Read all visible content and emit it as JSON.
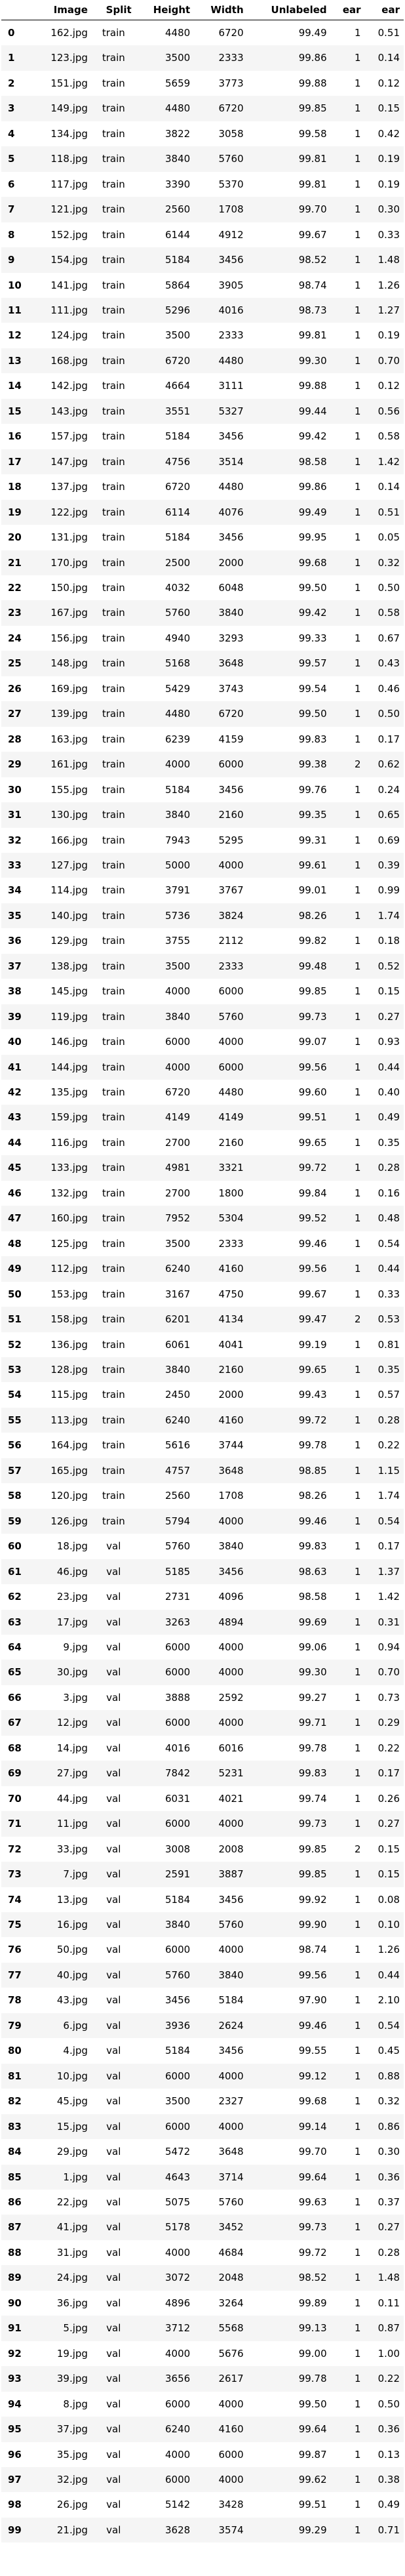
{
  "columns": [
    "",
    "Image",
    "Split",
    "Height",
    "Width",
    "Unlabeled",
    "ear",
    "ear"
  ],
  "rows": [
    [
      "0",
      "162.jpg",
      "train",
      "4480",
      "6720",
      "99.49",
      "1",
      "0.51"
    ],
    [
      "1",
      "123.jpg",
      "train",
      "3500",
      "2333",
      "99.86",
      "1",
      "0.14"
    ],
    [
      "2",
      "151.jpg",
      "train",
      "5659",
      "3773",
      "99.88",
      "1",
      "0.12"
    ],
    [
      "3",
      "149.jpg",
      "train",
      "4480",
      "6720",
      "99.85",
      "1",
      "0.15"
    ],
    [
      "4",
      "134.jpg",
      "train",
      "3822",
      "3058",
      "99.58",
      "1",
      "0.42"
    ],
    [
      "5",
      "118.jpg",
      "train",
      "3840",
      "5760",
      "99.81",
      "1",
      "0.19"
    ],
    [
      "6",
      "117.jpg",
      "train",
      "3390",
      "5370",
      "99.81",
      "1",
      "0.19"
    ],
    [
      "7",
      "121.jpg",
      "train",
      "2560",
      "1708",
      "99.70",
      "1",
      "0.30"
    ],
    [
      "8",
      "152.jpg",
      "train",
      "6144",
      "4912",
      "99.67",
      "1",
      "0.33"
    ],
    [
      "9",
      "154.jpg",
      "train",
      "5184",
      "3456",
      "98.52",
      "1",
      "1.48"
    ],
    [
      "10",
      "141.jpg",
      "train",
      "5864",
      "3905",
      "98.74",
      "1",
      "1.26"
    ],
    [
      "11",
      "111.jpg",
      "train",
      "5296",
      "4016",
      "98.73",
      "1",
      "1.27"
    ],
    [
      "12",
      "124.jpg",
      "train",
      "3500",
      "2333",
      "99.81",
      "1",
      "0.19"
    ],
    [
      "13",
      "168.jpg",
      "train",
      "6720",
      "4480",
      "99.30",
      "1",
      "0.70"
    ],
    [
      "14",
      "142.jpg",
      "train",
      "4664",
      "3111",
      "99.88",
      "1",
      "0.12"
    ],
    [
      "15",
      "143.jpg",
      "train",
      "3551",
      "5327",
      "99.44",
      "1",
      "0.56"
    ],
    [
      "16",
      "157.jpg",
      "train",
      "5184",
      "3456",
      "99.42",
      "1",
      "0.58"
    ],
    [
      "17",
      "147.jpg",
      "train",
      "4756",
      "3514",
      "98.58",
      "1",
      "1.42"
    ],
    [
      "18",
      "137.jpg",
      "train",
      "6720",
      "4480",
      "99.86",
      "1",
      "0.14"
    ],
    [
      "19",
      "122.jpg",
      "train",
      "6114",
      "4076",
      "99.49",
      "1",
      "0.51"
    ],
    [
      "20",
      "131.jpg",
      "train",
      "5184",
      "3456",
      "99.95",
      "1",
      "0.05"
    ],
    [
      "21",
      "170.jpg",
      "train",
      "2500",
      "2000",
      "99.68",
      "1",
      "0.32"
    ],
    [
      "22",
      "150.jpg",
      "train",
      "4032",
      "6048",
      "99.50",
      "1",
      "0.50"
    ],
    [
      "23",
      "167.jpg",
      "train",
      "5760",
      "3840",
      "99.42",
      "1",
      "0.58"
    ],
    [
      "24",
      "156.jpg",
      "train",
      "4940",
      "3293",
      "99.33",
      "1",
      "0.67"
    ],
    [
      "25",
      "148.jpg",
      "train",
      "5168",
      "3648",
      "99.57",
      "1",
      "0.43"
    ],
    [
      "26",
      "169.jpg",
      "train",
      "5429",
      "3743",
      "99.54",
      "1",
      "0.46"
    ],
    [
      "27",
      "139.jpg",
      "train",
      "4480",
      "6720",
      "99.50",
      "1",
      "0.50"
    ],
    [
      "28",
      "163.jpg",
      "train",
      "6239",
      "4159",
      "99.83",
      "1",
      "0.17"
    ],
    [
      "29",
      "161.jpg",
      "train",
      "4000",
      "6000",
      "99.38",
      "2",
      "0.62"
    ],
    [
      "30",
      "155.jpg",
      "train",
      "5184",
      "3456",
      "99.76",
      "1",
      "0.24"
    ],
    [
      "31",
      "130.jpg",
      "train",
      "3840",
      "2160",
      "99.35",
      "1",
      "0.65"
    ],
    [
      "32",
      "166.jpg",
      "train",
      "7943",
      "5295",
      "99.31",
      "1",
      "0.69"
    ],
    [
      "33",
      "127.jpg",
      "train",
      "5000",
      "4000",
      "99.61",
      "1",
      "0.39"
    ],
    [
      "34",
      "114.jpg",
      "train",
      "3791",
      "3767",
      "99.01",
      "1",
      "0.99"
    ],
    [
      "35",
      "140.jpg",
      "train",
      "5736",
      "3824",
      "98.26",
      "1",
      "1.74"
    ],
    [
      "36",
      "129.jpg",
      "train",
      "3755",
      "2112",
      "99.82",
      "1",
      "0.18"
    ],
    [
      "37",
      "138.jpg",
      "train",
      "3500",
      "2333",
      "99.48",
      "1",
      "0.52"
    ],
    [
      "38",
      "145.jpg",
      "train",
      "4000",
      "6000",
      "99.85",
      "1",
      "0.15"
    ],
    [
      "39",
      "119.jpg",
      "train",
      "3840",
      "5760",
      "99.73",
      "1",
      "0.27"
    ],
    [
      "40",
      "146.jpg",
      "train",
      "6000",
      "4000",
      "99.07",
      "1",
      "0.93"
    ],
    [
      "41",
      "144.jpg",
      "train",
      "4000",
      "6000",
      "99.56",
      "1",
      "0.44"
    ],
    [
      "42",
      "135.jpg",
      "train",
      "6720",
      "4480",
      "99.60",
      "1",
      "0.40"
    ],
    [
      "43",
      "159.jpg",
      "train",
      "4149",
      "4149",
      "99.51",
      "1",
      "0.49"
    ],
    [
      "44",
      "116.jpg",
      "train",
      "2700",
      "2160",
      "99.65",
      "1",
      "0.35"
    ],
    [
      "45",
      "133.jpg",
      "train",
      "4981",
      "3321",
      "99.72",
      "1",
      "0.28"
    ],
    [
      "46",
      "132.jpg",
      "train",
      "2700",
      "1800",
      "99.84",
      "1",
      "0.16"
    ],
    [
      "47",
      "160.jpg",
      "train",
      "7952",
      "5304",
      "99.52",
      "1",
      "0.48"
    ],
    [
      "48",
      "125.jpg",
      "train",
      "3500",
      "2333",
      "99.46",
      "1",
      "0.54"
    ],
    [
      "49",
      "112.jpg",
      "train",
      "6240",
      "4160",
      "99.56",
      "1",
      "0.44"
    ],
    [
      "50",
      "153.jpg",
      "train",
      "3167",
      "4750",
      "99.67",
      "1",
      "0.33"
    ],
    [
      "51",
      "158.jpg",
      "train",
      "6201",
      "4134",
      "99.47",
      "2",
      "0.53"
    ],
    [
      "52",
      "136.jpg",
      "train",
      "6061",
      "4041",
      "99.19",
      "1",
      "0.81"
    ],
    [
      "53",
      "128.jpg",
      "train",
      "3840",
      "2160",
      "99.65",
      "1",
      "0.35"
    ],
    [
      "54",
      "115.jpg",
      "train",
      "2450",
      "2000",
      "99.43",
      "1",
      "0.57"
    ],
    [
      "55",
      "113.jpg",
      "train",
      "6240",
      "4160",
      "99.72",
      "1",
      "0.28"
    ],
    [
      "56",
      "164.jpg",
      "train",
      "5616",
      "3744",
      "99.78",
      "1",
      "0.22"
    ],
    [
      "57",
      "165.jpg",
      "train",
      "4757",
      "3648",
      "98.85",
      "1",
      "1.15"
    ],
    [
      "58",
      "120.jpg",
      "train",
      "2560",
      "1708",
      "98.26",
      "1",
      "1.74"
    ],
    [
      "59",
      "126.jpg",
      "train",
      "5794",
      "4000",
      "99.46",
      "1",
      "0.54"
    ],
    [
      "60",
      "18.jpg",
      "val",
      "5760",
      "3840",
      "99.83",
      "1",
      "0.17"
    ],
    [
      "61",
      "46.jpg",
      "val",
      "5185",
      "3456",
      "98.63",
      "1",
      "1.37"
    ],
    [
      "62",
      "23.jpg",
      "val",
      "2731",
      "4096",
      "98.58",
      "1",
      "1.42"
    ],
    [
      "63",
      "17.jpg",
      "val",
      "3263",
      "4894",
      "99.69",
      "1",
      "0.31"
    ],
    [
      "64",
      "9.jpg",
      "val",
      "6000",
      "4000",
      "99.06",
      "1",
      "0.94"
    ],
    [
      "65",
      "30.jpg",
      "val",
      "6000",
      "4000",
      "99.30",
      "1",
      "0.70"
    ],
    [
      "66",
      "3.jpg",
      "val",
      "3888",
      "2592",
      "99.27",
      "1",
      "0.73"
    ],
    [
      "67",
      "12.jpg",
      "val",
      "6000",
      "4000",
      "99.71",
      "1",
      "0.29"
    ],
    [
      "68",
      "14.jpg",
      "val",
      "4016",
      "6016",
      "99.78",
      "1",
      "0.22"
    ],
    [
      "69",
      "27.jpg",
      "val",
      "7842",
      "5231",
      "99.83",
      "1",
      "0.17"
    ],
    [
      "70",
      "44.jpg",
      "val",
      "6031",
      "4021",
      "99.74",
      "1",
      "0.26"
    ],
    [
      "71",
      "11.jpg",
      "val",
      "6000",
      "4000",
      "99.73",
      "1",
      "0.27"
    ],
    [
      "72",
      "33.jpg",
      "val",
      "3008",
      "2008",
      "99.85",
      "2",
      "0.15"
    ],
    [
      "73",
      "7.jpg",
      "val",
      "2591",
      "3887",
      "99.85",
      "1",
      "0.15"
    ],
    [
      "74",
      "13.jpg",
      "val",
      "5184",
      "3456",
      "99.92",
      "1",
      "0.08"
    ],
    [
      "75",
      "16.jpg",
      "val",
      "3840",
      "5760",
      "99.90",
      "1",
      "0.10"
    ],
    [
      "76",
      "50.jpg",
      "val",
      "6000",
      "4000",
      "98.74",
      "1",
      "1.26"
    ],
    [
      "77",
      "40.jpg",
      "val",
      "5760",
      "3840",
      "99.56",
      "1",
      "0.44"
    ],
    [
      "78",
      "43.jpg",
      "val",
      "3456",
      "5184",
      "97.90",
      "1",
      "2.10"
    ],
    [
      "79",
      "6.jpg",
      "val",
      "3936",
      "2624",
      "99.46",
      "1",
      "0.54"
    ],
    [
      "80",
      "4.jpg",
      "val",
      "5184",
      "3456",
      "99.55",
      "1",
      "0.45"
    ],
    [
      "81",
      "10.jpg",
      "val",
      "6000",
      "4000",
      "99.12",
      "1",
      "0.88"
    ],
    [
      "82",
      "45.jpg",
      "val",
      "3500",
      "2327",
      "99.68",
      "1",
      "0.32"
    ],
    [
      "83",
      "15.jpg",
      "val",
      "6000",
      "4000",
      "99.14",
      "1",
      "0.86"
    ],
    [
      "84",
      "29.jpg",
      "val",
      "5472",
      "3648",
      "99.70",
      "1",
      "0.30"
    ],
    [
      "85",
      "1.jpg",
      "val",
      "4643",
      "3714",
      "99.64",
      "1",
      "0.36"
    ],
    [
      "86",
      "22.jpg",
      "val",
      "5075",
      "5760",
      "99.63",
      "1",
      "0.37"
    ],
    [
      "87",
      "41.jpg",
      "val",
      "5178",
      "3452",
      "99.73",
      "1",
      "0.27"
    ],
    [
      "88",
      "31.jpg",
      "val",
      "4000",
      "4684",
      "99.72",
      "1",
      "0.28"
    ],
    [
      "89",
      "24.jpg",
      "val",
      "3072",
      "2048",
      "98.52",
      "1",
      "1.48"
    ],
    [
      "90",
      "36.jpg",
      "val",
      "4896",
      "3264",
      "99.89",
      "1",
      "0.11"
    ],
    [
      "91",
      "5.jpg",
      "val",
      "3712",
      "5568",
      "99.13",
      "1",
      "0.87"
    ],
    [
      "92",
      "19.jpg",
      "val",
      "4000",
      "5676",
      "99.00",
      "1",
      "1.00"
    ],
    [
      "93",
      "39.jpg",
      "val",
      "3656",
      "2617",
      "99.78",
      "1",
      "0.22"
    ],
    [
      "94",
      "8.jpg",
      "val",
      "6000",
      "4000",
      "99.50",
      "1",
      "0.50"
    ],
    [
      "95",
      "37.jpg",
      "val",
      "6240",
      "4160",
      "99.64",
      "1",
      "0.36"
    ],
    [
      "96",
      "35.jpg",
      "val",
      "4000",
      "6000",
      "99.87",
      "1",
      "0.13"
    ],
    [
      "97",
      "32.jpg",
      "val",
      "6000",
      "4000",
      "99.62",
      "1",
      "0.38"
    ],
    [
      "98",
      "26.jpg",
      "val",
      "5142",
      "3428",
      "99.51",
      "1",
      "0.49"
    ],
    [
      "99",
      "21.jpg",
      "val",
      "3628",
      "3574",
      "99.29",
      "1",
      "0.71"
    ]
  ]
}
